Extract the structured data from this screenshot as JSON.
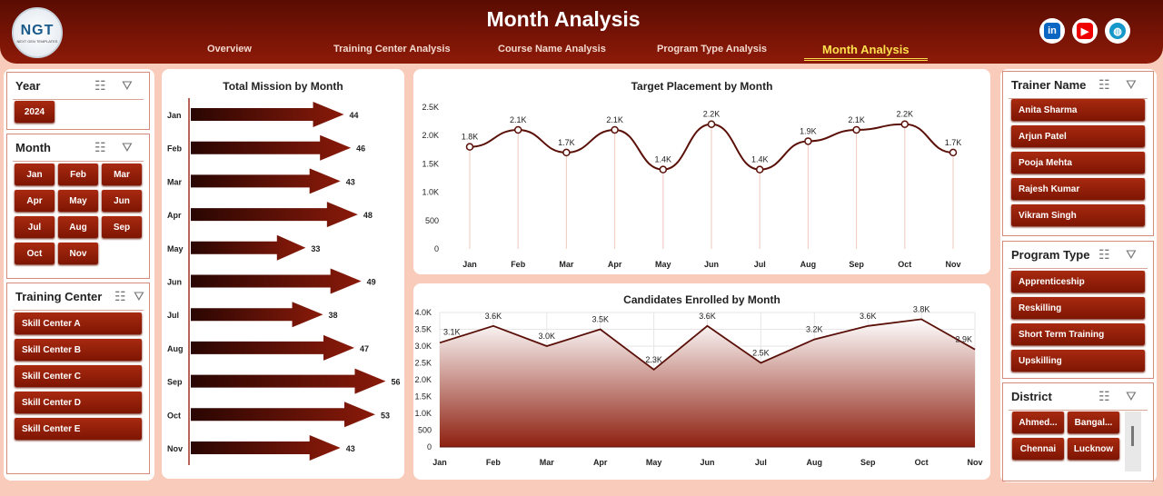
{
  "header": {
    "title": "Month Analysis",
    "logo_text": "NGT",
    "logo_sub": "NEXT GEN TEMPLATES",
    "tabs": [
      "Overview",
      "Training Center Analysis",
      "Course Name Analysis",
      "Program Type Analysis",
      "Month Analysis"
    ],
    "active_tab": "Month Analysis",
    "social": [
      "linkedin-icon",
      "youtube-icon",
      "globe-icon"
    ]
  },
  "slicers": {
    "year": {
      "title": "Year",
      "items": [
        "2024"
      ]
    },
    "month": {
      "title": "Month",
      "items": [
        "Jan",
        "Feb",
        "Mar",
        "Apr",
        "May",
        "Jun",
        "Jul",
        "Aug",
        "Sep",
        "Oct",
        "Nov"
      ]
    },
    "training_center": {
      "title": "Training Center",
      "items": [
        "Skill Center A",
        "Skill Center B",
        "Skill Center C",
        "Skill Center D",
        "Skill Center E"
      ]
    },
    "trainer": {
      "title": "Trainer Name",
      "items": [
        "Anita Sharma",
        "Arjun Patel",
        "Pooja Mehta",
        "Rajesh Kumar",
        "Vikram Singh"
      ]
    },
    "program": {
      "title": "Program Type",
      "items": [
        "Apprenticeship",
        "Reskilling",
        "Short Term Training",
        "Upskilling"
      ]
    },
    "district": {
      "title": "District",
      "items": [
        "Ahmed...",
        "Bangal...",
        "Chennai",
        "Lucknow"
      ]
    }
  },
  "colors": {
    "accent": "#8e1a08",
    "line": "#5a1008",
    "active_tab": "#ffe14d"
  },
  "chart_data": [
    {
      "type": "bar",
      "orientation": "horizontal",
      "mark": "arrow",
      "title": "Total Mission by Month",
      "categories": [
        "Jan",
        "Feb",
        "Mar",
        "Apr",
        "May",
        "Jun",
        "Jul",
        "Aug",
        "Sep",
        "Oct",
        "Nov"
      ],
      "values": [
        44,
        46,
        43,
        48,
        33,
        49,
        38,
        47,
        56,
        53,
        43
      ]
    },
    {
      "type": "line",
      "title": "Target Placement by Month",
      "categories": [
        "Jan",
        "Feb",
        "Mar",
        "Apr",
        "May",
        "Jun",
        "Jul",
        "Aug",
        "Sep",
        "Oct",
        "Nov"
      ],
      "values": [
        1800,
        2100,
        1700,
        2100,
        1400,
        2200,
        1400,
        1900,
        2100,
        2200,
        1700
      ],
      "labels": [
        "1.8K",
        "2.1K",
        "1.7K",
        "2.1K",
        "1.4K",
        "2.2K",
        "1.4K",
        "1.9K",
        "2.1K",
        "2.2K",
        "1.7K"
      ],
      "yticks": [
        "0",
        "500",
        "1.0K",
        "1.5K",
        "2.0K",
        "2.5K"
      ],
      "ylim": [
        0,
        2500
      ]
    },
    {
      "type": "area",
      "title": "Candidates Enrolled by Month",
      "categories": [
        "Jan",
        "Feb",
        "Mar",
        "Apr",
        "May",
        "Jun",
        "Jul",
        "Aug",
        "Sep",
        "Oct",
        "Nov"
      ],
      "values": [
        3100,
        3600,
        3000,
        3500,
        2300,
        3600,
        2500,
        3200,
        3600,
        3800,
        2900
      ],
      "labels": [
        "3.1K",
        "3.6K",
        "3.0K",
        "3.5K",
        "2.3K",
        "3.6K",
        "2.5K",
        "3.2K",
        "3.6K",
        "3.8K",
        "2.9K"
      ],
      "yticks": [
        "0",
        "500",
        "1.0K",
        "1.5K",
        "2.0K",
        "2.5K",
        "3.0K",
        "3.5K",
        "4.0K"
      ],
      "ylim": [
        0,
        4000
      ]
    }
  ]
}
